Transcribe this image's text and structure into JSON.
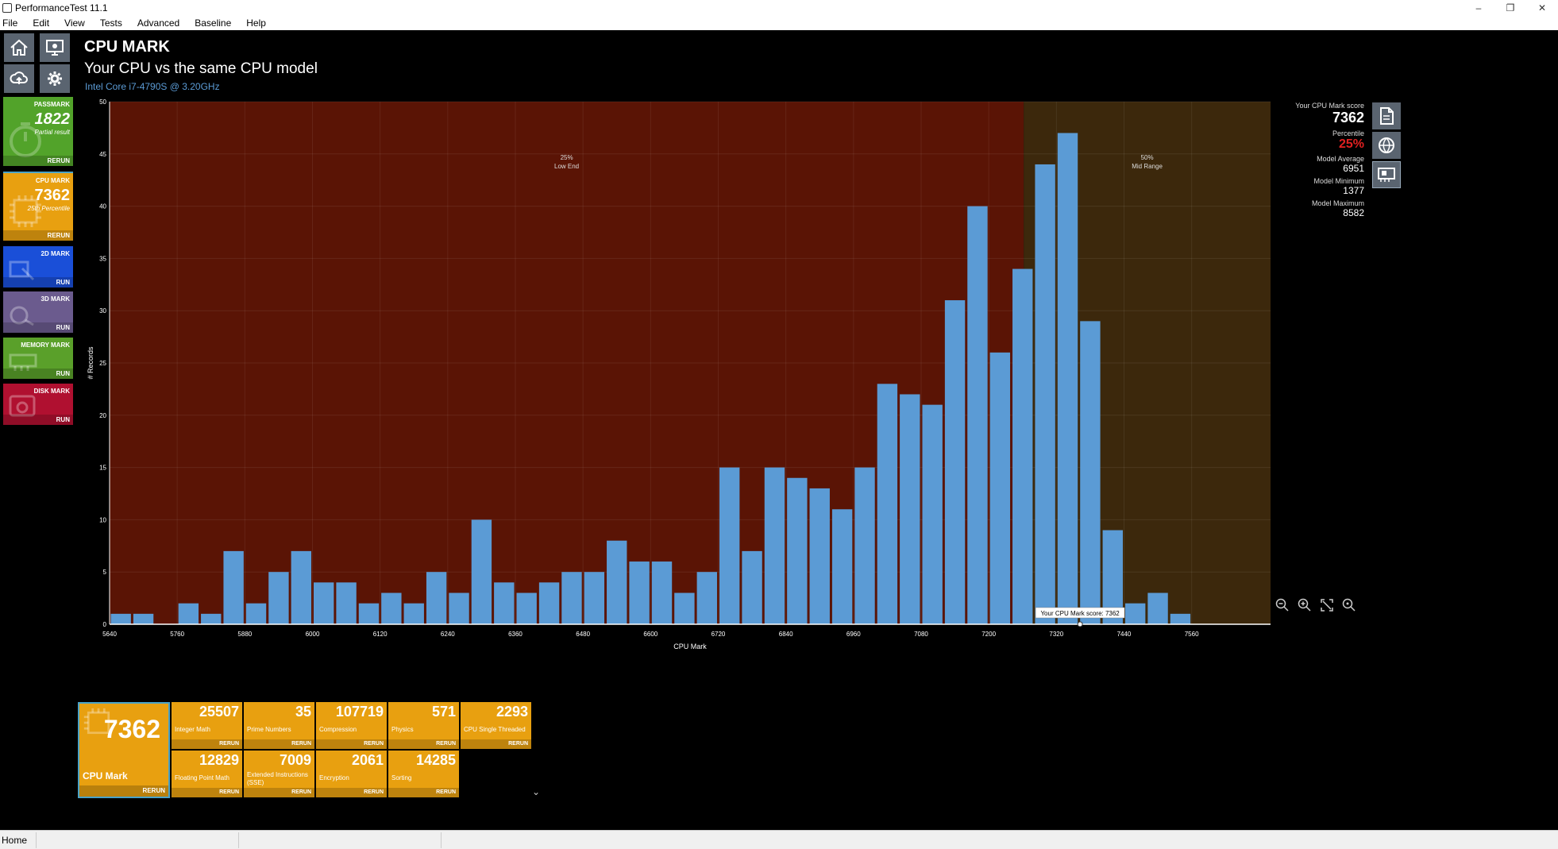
{
  "window": {
    "title": "PerformanceTest 11.1"
  },
  "menu": [
    "File",
    "Edit",
    "View",
    "Tests",
    "Advanced",
    "Baseline",
    "Help"
  ],
  "status": {
    "text": "Home"
  },
  "header": {
    "title": "CPU MARK",
    "subtitle": "Your CPU vs the same CPU model",
    "cpu": "Intel Core i7-4790S @ 3.20GHz"
  },
  "nav_tiles": [
    {
      "name": "PASSMARK",
      "score": "1822",
      "sub": "Partial result",
      "action": "RERUN",
      "color": "#52a32a"
    },
    {
      "name": "CPU MARK",
      "score": "7362",
      "sub": "25th Percentile",
      "action": "RERUN",
      "color": "#e8a010"
    },
    {
      "name": "2D MARK",
      "score": "",
      "sub": "",
      "action": "RUN",
      "color": "#1a4fd8"
    },
    {
      "name": "3D MARK",
      "score": "",
      "sub": "",
      "action": "RUN",
      "color": "#6b5b8e"
    },
    {
      "name": "MEMORY MARK",
      "score": "",
      "sub": "",
      "action": "RUN",
      "color": "#5aa02a"
    },
    {
      "name": "DISK MARK",
      "score": "",
      "sub": "",
      "action": "RUN",
      "color": "#b01030"
    }
  ],
  "stats": {
    "score_label": "Your CPU Mark score",
    "score": "7362",
    "percentile_label": "Percentile",
    "percentile": "25%",
    "avg_label": "Model Average",
    "avg": "6951",
    "min_label": "Model Minimum",
    "min": "1377",
    "max_label": "Model Maximum",
    "max": "8582"
  },
  "chart_data": {
    "type": "bar",
    "xlabel": "CPU Mark",
    "ylabel": "# Records",
    "xlim": [
      5640,
      7700
    ],
    "ylim": [
      0,
      50
    ],
    "yticks": [
      0,
      5,
      10,
      15,
      20,
      25,
      30,
      35,
      40,
      45,
      50
    ],
    "xticks": [
      5640,
      5760,
      5880,
      6000,
      6120,
      6240,
      6360,
      6480,
      6600,
      6720,
      6840,
      6960,
      7080,
      7200,
      7320,
      7440,
      7560
    ],
    "bin_width": 40,
    "bins_start": [
      5640,
      5680,
      5720,
      5760,
      5800,
      5840,
      5880,
      5920,
      5960,
      6000,
      6040,
      6080,
      6120,
      6160,
      6200,
      6240,
      6280,
      6320,
      6360,
      6400,
      6440,
      6480,
      6520,
      6560,
      6600,
      6640,
      6680,
      6720,
      6760,
      6800,
      6840,
      6880,
      6920,
      6960,
      7000,
      7040,
      7080,
      7120,
      7160,
      7200,
      7240,
      7280,
      7320,
      7360,
      7400,
      7440,
      7480,
      7520,
      7560
    ],
    "values": [
      1,
      1,
      0,
      2,
      1,
      7,
      2,
      5,
      7,
      4,
      4,
      2,
      3,
      2,
      5,
      3,
      10,
      4,
      3,
      4,
      5,
      5,
      8,
      6,
      6,
      3,
      5,
      15,
      7,
      15,
      14,
      13,
      11,
      15,
      23,
      22,
      21,
      31,
      40,
      26,
      34,
      44,
      47,
      29,
      9,
      2,
      3,
      1,
      0
    ],
    "zones": [
      {
        "label_pct": "25%",
        "label": "Low End",
        "from": 5640,
        "to": 7262,
        "color": "#5a1405"
      },
      {
        "label_pct": "50%",
        "label": "Mid Range",
        "from": 7262,
        "to": 7700,
        "color": "#3c280c"
      }
    ],
    "marker": {
      "value": 7362,
      "label": "Your CPU Mark score: 7362"
    },
    "bar_color": "#5b9bd5"
  },
  "subtests": {
    "main": {
      "score": "7362",
      "name": "CPU Mark",
      "action": "RERUN"
    },
    "items": [
      {
        "score": "25507",
        "name": "Integer Math",
        "action": "RERUN"
      },
      {
        "score": "35",
        "name": "Prime Numbers",
        "action": "RERUN"
      },
      {
        "score": "107719",
        "name": "Compression",
        "action": "RERUN"
      },
      {
        "score": "571",
        "name": "Physics",
        "action": "RERUN"
      },
      {
        "score": "2293",
        "name": "CPU Single Threaded",
        "action": "RERUN"
      },
      {
        "score": "12829",
        "name": "Floating Point Math",
        "action": "RERUN"
      },
      {
        "score": "7009",
        "name": "Extended Instructions (SSE)",
        "action": "RERUN"
      },
      {
        "score": "2061",
        "name": "Encryption",
        "action": "RERUN"
      },
      {
        "score": "14285",
        "name": "Sorting",
        "action": "RERUN"
      }
    ]
  }
}
